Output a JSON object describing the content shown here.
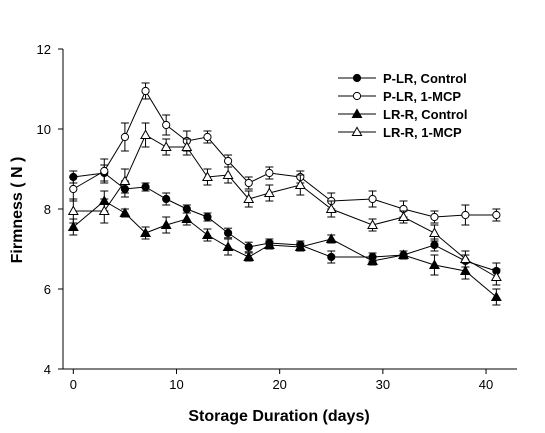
{
  "chart_data": {
    "type": "line",
    "title": "",
    "xlabel": "Storage Duration (days)",
    "ylabel": "Firmness ( N )",
    "xlim": [
      -1,
      43
    ],
    "ylim": [
      4,
      12
    ],
    "xticks": [
      0,
      10,
      20,
      30,
      40
    ],
    "yticks": [
      4,
      6,
      8,
      10,
      12
    ],
    "grid": false,
    "legend_position": "top-right",
    "series": [
      {
        "name": "P-LR, Control",
        "marker": "filled-circle",
        "color": "#000000",
        "x": [
          0,
          3,
          5,
          7,
          9,
          11,
          13,
          15,
          17,
          19,
          22,
          25,
          29,
          32,
          35,
          38,
          41
        ],
        "y": [
          8.8,
          8.9,
          8.5,
          8.55,
          8.25,
          8.0,
          7.8,
          7.4,
          7.05,
          7.15,
          7.1,
          6.8,
          6.8,
          6.85,
          7.1,
          6.7,
          6.45
        ],
        "err": [
          0.15,
          0.2,
          0.2,
          0.1,
          0.15,
          0.1,
          0.1,
          0.12,
          0.12,
          0.1,
          0.1,
          0.15,
          0.1,
          0.1,
          0.15,
          0.15,
          0.2
        ]
      },
      {
        "name": "P-LR, 1-MCP",
        "marker": "open-circle",
        "color": "#000000",
        "x": [
          0,
          3,
          5,
          7,
          9,
          11,
          13,
          15,
          17,
          19,
          22,
          25,
          29,
          32,
          35,
          38,
          41
        ],
        "y": [
          8.5,
          8.95,
          9.8,
          10.95,
          10.1,
          9.7,
          9.8,
          9.2,
          8.65,
          8.9,
          8.8,
          8.2,
          8.25,
          8.0,
          7.8,
          7.85,
          7.85
        ],
        "err": [
          0.3,
          0.3,
          0.35,
          0.2,
          0.25,
          0.25,
          0.15,
          0.15,
          0.15,
          0.15,
          0.15,
          0.2,
          0.2,
          0.2,
          0.15,
          0.25,
          0.15
        ]
      },
      {
        "name": "LR-R, Control",
        "marker": "filled-triangle",
        "color": "#000000",
        "x": [
          0,
          3,
          5,
          7,
          9,
          11,
          13,
          15,
          17,
          19,
          22,
          25,
          29,
          32,
          35,
          38,
          41
        ],
        "y": [
          7.55,
          8.2,
          7.9,
          7.4,
          7.6,
          7.75,
          7.35,
          7.05,
          6.8,
          7.1,
          7.05,
          7.25,
          6.7,
          6.85,
          6.6,
          6.45,
          5.8
        ],
        "err": [
          0.2,
          0.25,
          0.1,
          0.15,
          0.2,
          0.15,
          0.15,
          0.2,
          0.1,
          0.1,
          0.1,
          0.1,
          0.1,
          0.1,
          0.25,
          0.2,
          0.2
        ]
      },
      {
        "name": "LR-R, 1-MCP",
        "marker": "open-triangle",
        "color": "#000000",
        "x": [
          0,
          3,
          5,
          7,
          9,
          11,
          13,
          15,
          17,
          19,
          22,
          25,
          29,
          32,
          35,
          38,
          41
        ],
        "y": [
          7.95,
          7.95,
          8.7,
          9.85,
          9.55,
          9.55,
          8.8,
          8.85,
          8.25,
          8.4,
          8.6,
          8.0,
          7.6,
          7.8,
          7.4,
          6.75,
          6.3
        ],
        "err": [
          0.3,
          0.3,
          0.3,
          0.3,
          0.2,
          0.2,
          0.2,
          0.2,
          0.2,
          0.2,
          0.25,
          0.2,
          0.15,
          0.15,
          0.2,
          0.2,
          0.2
        ]
      }
    ]
  }
}
